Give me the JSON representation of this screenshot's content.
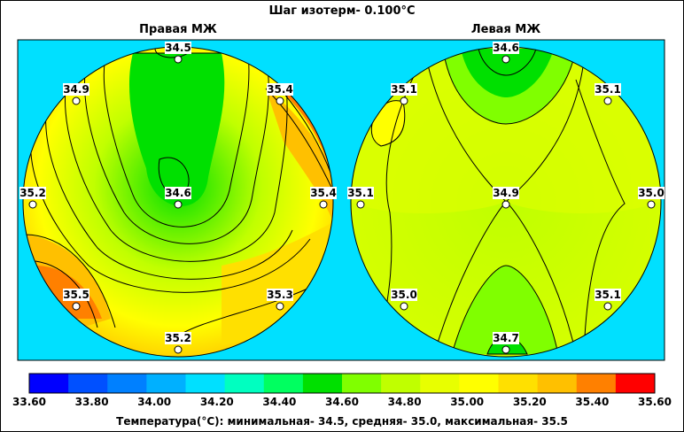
{
  "header": {
    "title": "Шаг изотерм- 0.100°C"
  },
  "chart_data": {
    "type": "heatmap",
    "title": "Шаг изотерм- 0.100°C",
    "panels": [
      {
        "title": "Правая МЖ",
        "points": [
          {
            "label": "34.5",
            "value": 34.5
          },
          {
            "label": "34.9",
            "value": 34.9
          },
          {
            "label": "35.4",
            "value": 35.4
          },
          {
            "label": "35.2",
            "value": 35.2
          },
          {
            "label": "34.6",
            "value": 34.6
          },
          {
            "label": "35.4",
            "value": 35.4
          },
          {
            "label": "35.5",
            "value": 35.5
          },
          {
            "label": "35.3",
            "value": 35.3
          },
          {
            "label": "35.2",
            "value": 35.2
          }
        ]
      },
      {
        "title": "Левая МЖ",
        "points": [
          {
            "label": "34.6",
            "value": 34.6
          },
          {
            "label": "35.1",
            "value": 35.1
          },
          {
            "label": "35.1",
            "value": 35.1
          },
          {
            "label": "35.1",
            "value": 35.1
          },
          {
            "label": "34.9",
            "value": 34.9
          },
          {
            "label": "35.0",
            "value": 35.0
          },
          {
            "label": "35.0",
            "value": 35.0
          },
          {
            "label": "35.1",
            "value": 35.1
          },
          {
            "label": "34.7",
            "value": 34.7
          }
        ]
      }
    ],
    "colorbar": {
      "ticks": [
        "33.60",
        "33.80",
        "34.00",
        "34.20",
        "34.40",
        "34.60",
        "34.80",
        "35.00",
        "35.20",
        "35.40",
        "35.60"
      ],
      "range": [
        33.6,
        35.6
      ],
      "colors": [
        "#0000ff",
        "#0050ff",
        "#0080ff",
        "#00b0ff",
        "#00e0ff",
        "#00ffc0",
        "#00ff60",
        "#00e000",
        "#80ff00",
        "#c0ff00",
        "#e8ff00",
        "#ffff00",
        "#ffe000",
        "#ffc000",
        "#ff8000",
        "#ff0000"
      ]
    },
    "footer": "Температура(°C): минимальная-   34.5,  средняя-   35.0,  максимальная-   35.5"
  }
}
